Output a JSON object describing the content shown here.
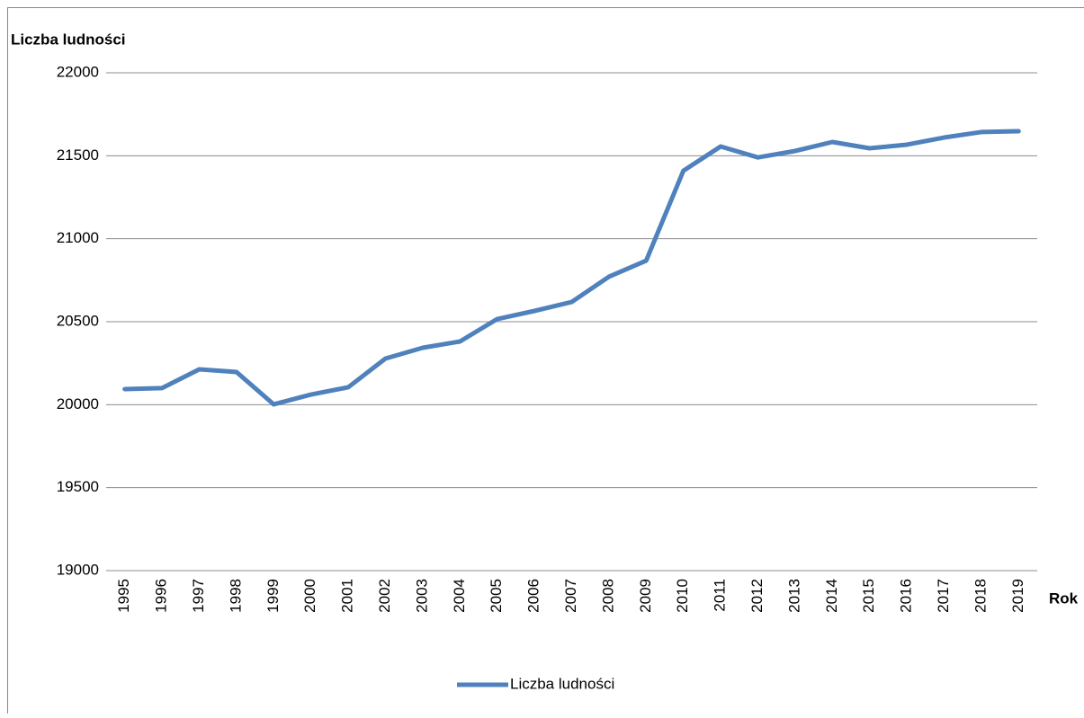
{
  "chart_data": {
    "type": "line",
    "title": "Liczba ludności",
    "x_label": "Rok",
    "categories": [
      "1995",
      "1996",
      "1997",
      "1998",
      "1999",
      "2000",
      "2001",
      "2002",
      "2003",
      "2004",
      "2005",
      "2006",
      "2007",
      "2008",
      "2009",
      "2010",
      "2011",
      "2012",
      "2013",
      "2014",
      "2015",
      "2016",
      "2017",
      "2018",
      "2019"
    ],
    "series": [
      {
        "name": "Liczba ludności",
        "color": "#4f81bd",
        "values": [
          20094,
          20100,
          20213,
          20197,
          20002,
          20061,
          20105,
          20278,
          20343,
          20381,
          20516,
          20565,
          20619,
          20771,
          20868,
          21410,
          21556,
          21490,
          21529,
          21583,
          21545,
          21567,
          21610,
          21643,
          21648
        ]
      }
    ],
    "ylim": [
      19000,
      22000
    ],
    "yticks": [
      19000,
      19500,
      20000,
      20500,
      21000,
      21500,
      22000
    ],
    "grid": true,
    "legend": "bottom"
  }
}
